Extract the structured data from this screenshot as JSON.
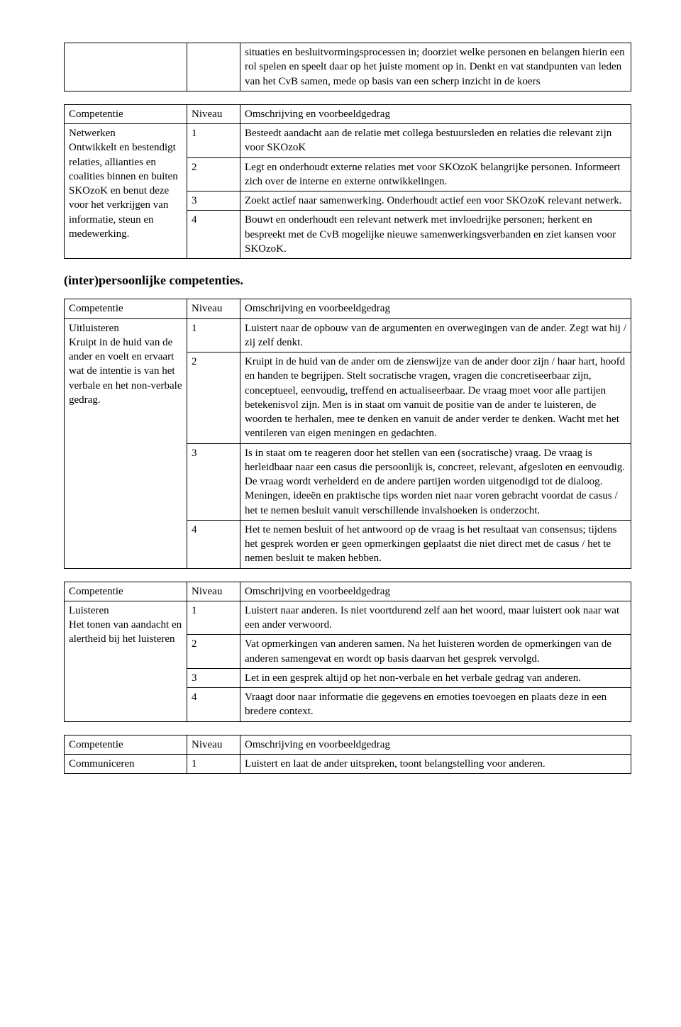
{
  "intro": {
    "text": "situaties en besluitvormingsprocessen in; doorziet welke personen en belangen hierin een rol spelen en speelt daar op het juiste moment op in. Denkt en vat standpunten van leden van het CvB samen, mede op basis van een scherp inzicht in de koers"
  },
  "headers": {
    "competentie": "Competentie",
    "niveau": "Niveau",
    "omschrijving": "Omschrijving en voorbeeldgedrag"
  },
  "section_heading": "(inter)persoonlijke competenties.",
  "table1": {
    "comp_title": "Netwerken",
    "comp_desc": "Ontwikkelt en bestendigt relaties, allianties en coalities binnen en buiten SKOzoK en benut deze voor het verkrijgen van informatie, steun en medewerking.",
    "rows": [
      {
        "n": "1",
        "d": "Besteedt aandacht aan de relatie met collega bestuursleden en relaties die relevant zijn voor SKOzoK"
      },
      {
        "n": "2",
        "d": "Legt en onderhoudt externe relaties met voor SKOzoK belangrijke personen. Informeert zich over de interne en externe ontwikkelingen."
      },
      {
        "n": "3",
        "d": "Zoekt actief naar samenwerking. Onderhoudt actief een voor SKOzoK relevant netwerk."
      },
      {
        "n": "4",
        "d": "Bouwt en onderhoudt een relevant netwerk met invloedrijke personen; herkent en bespreekt met de CvB mogelijke nieuwe samenwerkingsverbanden en ziet kansen voor SKOzoK."
      }
    ]
  },
  "table2": {
    "comp_title": "Uitluisteren",
    "comp_desc": "Kruipt in de huid van de ander en voelt en ervaart wat de intentie is van het verbale en het non-verbale gedrag.",
    "rows": [
      {
        "n": "1",
        "d": "Luistert naar de opbouw van de argumenten en overwegingen van de ander. Zegt wat hij / zij zelf denkt."
      },
      {
        "n": "2",
        "d": "Kruipt in de huid van de ander om de zienswijze van de ander door zijn / haar hart, hoofd en handen te begrijpen. Stelt socratische vragen, vragen die concretiseerbaar zijn, conceptueel, eenvoudig, treffend en actualiseerbaar. De vraag moet voor alle partijen betekenisvol zijn. Men is in staat om vanuit de positie van de ander te luisteren, de woorden te herhalen, mee te denken en vanuit de ander verder te denken. Wacht met het ventileren van eigen meningen en gedachten."
      },
      {
        "n": "3",
        "d": "Is in staat om te reageren door het stellen van een (socratische) vraag. De vraag  is herleidbaar naar een casus die persoonlijk is, concreet, relevant, afgesloten en eenvoudig. De vraag wordt verhelderd en de andere partijen worden uitgenodigd tot de dialoog. Meningen, ideeën en praktische tips worden niet naar voren gebracht voordat de casus / het te nemen besluit vanuit verschillende invalshoeken is onderzocht."
      },
      {
        "n": "4",
        "d": "Het te nemen besluit of het antwoord op de vraag is het resultaat van consensus; tijdens het gesprek worden er geen opmerkingen geplaatst die niet direct met de casus / het te nemen besluit te maken hebben."
      }
    ]
  },
  "table3": {
    "comp_title": "Luisteren",
    "comp_desc": "Het tonen van aandacht en alertheid bij het luisteren",
    "rows": [
      {
        "n": "1",
        "d": "Luistert naar anderen. Is niet voortdurend zelf aan het woord, maar luistert ook naar wat een ander verwoord."
      },
      {
        "n": "2",
        "d": "Vat opmerkingen van anderen samen. Na het luisteren worden de opmerkingen van de anderen samengevat en wordt op basis daarvan het gesprek vervolgd."
      },
      {
        "n": "3",
        "d": "Let in een gesprek altijd op het non-verbale en het verbale gedrag van anderen."
      },
      {
        "n": "4",
        "d": "Vraagt door naar informatie die gegevens en emoties toevoegen en plaats deze in een bredere context."
      }
    ]
  },
  "table4": {
    "comp_title": "Communiceren",
    "rows": [
      {
        "n": "1",
        "d": "Luistert en laat de ander uitspreken, toont belangstelling voor anderen."
      }
    ]
  }
}
